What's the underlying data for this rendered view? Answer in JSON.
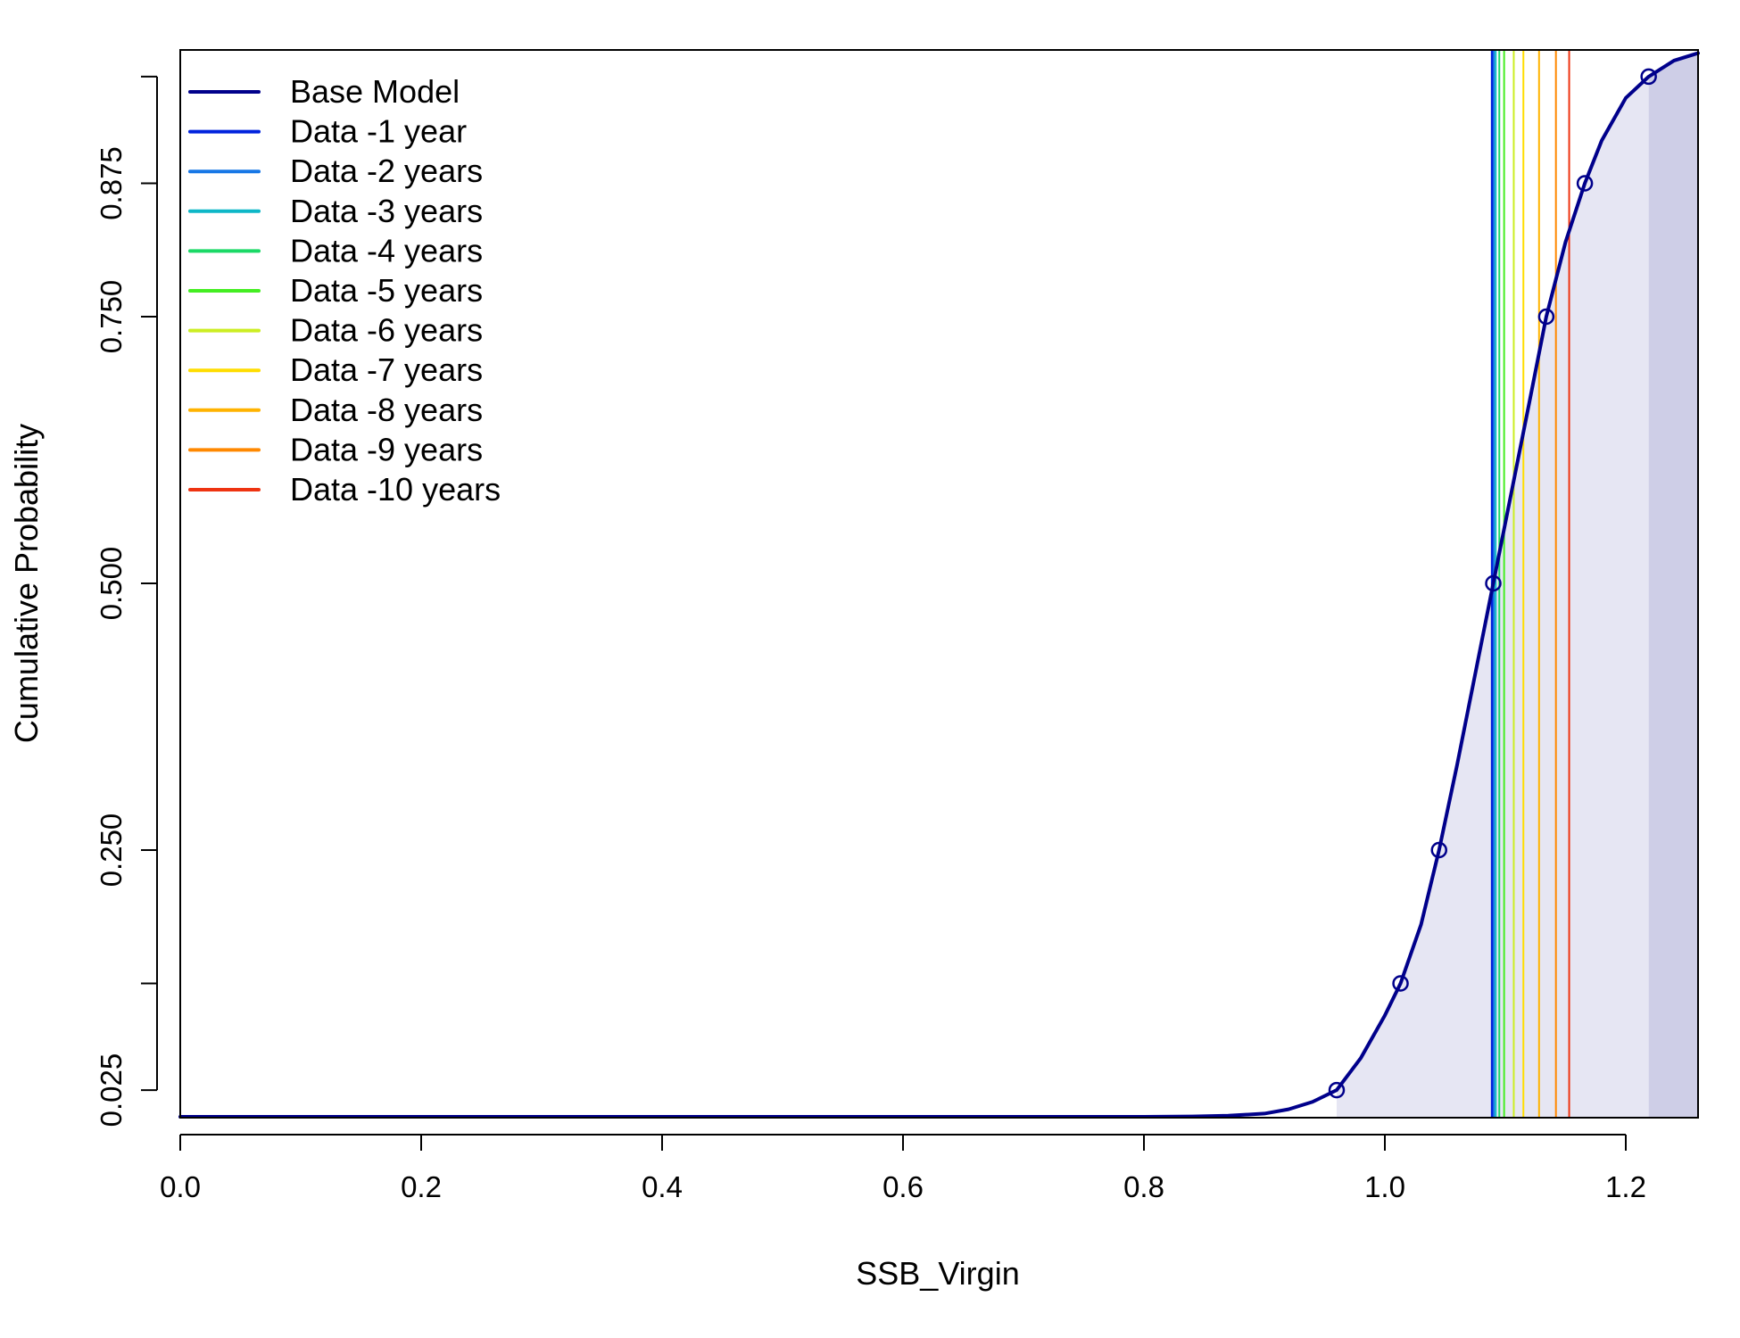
{
  "chart_data": {
    "type": "line",
    "title": "",
    "xlabel": "SSB_Virgin",
    "ylabel": "Cumulative Probability",
    "xlim": [
      0,
      1.26
    ],
    "ylim": [
      0,
      1
    ],
    "grid": false,
    "legend_position": "top-left",
    "x_ticks": [
      {
        "value": 0.0,
        "label": "0.0"
      },
      {
        "value": 0.2,
        "label": "0.2"
      },
      {
        "value": 0.4,
        "label": "0.4"
      },
      {
        "value": 0.6,
        "label": "0.6"
      },
      {
        "value": 0.8,
        "label": "0.8"
      },
      {
        "value": 1.0,
        "label": "1.0"
      },
      {
        "value": 1.2,
        "label": "1.2"
      }
    ],
    "y_ticks": [
      {
        "value": 0.025,
        "label": "0.025"
      },
      {
        "value": 0.125,
        "label": ""
      },
      {
        "value": 0.25,
        "label": "0.250"
      },
      {
        "value": 0.5,
        "label": "0.500"
      },
      {
        "value": 0.75,
        "label": "0.750"
      },
      {
        "value": 0.875,
        "label": "0.875"
      },
      {
        "value": 0.975,
        "label": ""
      }
    ],
    "base_model": {
      "name": "Base Model",
      "color": "#00008B",
      "quantiles": [
        {
          "x": 0.96,
          "y": 0.025
        },
        {
          "x": 1.013,
          "y": 0.125
        },
        {
          "x": 1.045,
          "y": 0.25
        },
        {
          "x": 1.09,
          "y": 0.5
        },
        {
          "x": 1.134,
          "y": 0.75
        },
        {
          "x": 1.166,
          "y": 0.875
        },
        {
          "x": 1.219,
          "y": 0.975
        }
      ],
      "curve": [
        {
          "x": 0.0,
          "y": 0.0
        },
        {
          "x": 0.8,
          "y": 0.0
        },
        {
          "x": 0.84,
          "y": 0.0003
        },
        {
          "x": 0.87,
          "y": 0.001
        },
        {
          "x": 0.9,
          "y": 0.003
        },
        {
          "x": 0.92,
          "y": 0.007
        },
        {
          "x": 0.94,
          "y": 0.014
        },
        {
          "x": 0.96,
          "y": 0.025
        },
        {
          "x": 0.98,
          "y": 0.055
        },
        {
          "x": 1.0,
          "y": 0.095
        },
        {
          "x": 1.013,
          "y": 0.125
        },
        {
          "x": 1.03,
          "y": 0.18
        },
        {
          "x": 1.045,
          "y": 0.25
        },
        {
          "x": 1.06,
          "y": 0.33
        },
        {
          "x": 1.075,
          "y": 0.415
        },
        {
          "x": 1.09,
          "y": 0.5
        },
        {
          "x": 1.105,
          "y": 0.585
        },
        {
          "x": 1.12,
          "y": 0.67
        },
        {
          "x": 1.134,
          "y": 0.75
        },
        {
          "x": 1.15,
          "y": 0.82
        },
        {
          "x": 1.166,
          "y": 0.875
        },
        {
          "x": 1.18,
          "y": 0.915
        },
        {
          "x": 1.2,
          "y": 0.955
        },
        {
          "x": 1.219,
          "y": 0.975
        },
        {
          "x": 1.24,
          "y": 0.99
        },
        {
          "x": 1.26,
          "y": 0.997
        }
      ],
      "shading": {
        "light_color": "#E6E6F3",
        "dark_color": "#CECEE7",
        "light_from": 0.96,
        "dark_from": 1.219
      }
    },
    "series": [
      {
        "name": "Data -1 year",
        "color": "#0022DD",
        "value": 1.0895
      },
      {
        "name": "Data -2 years",
        "color": "#1777E6",
        "value": 1.0905
      },
      {
        "name": "Data -3 years",
        "color": "#0DB7C7",
        "value": 1.092
      },
      {
        "name": "Data -4 years",
        "color": "#1AD966",
        "value": 1.095
      },
      {
        "name": "Data -5 years",
        "color": "#44EE22",
        "value": 1.099
      },
      {
        "name": "Data -6 years",
        "color": "#CCEE22",
        "value": 1.107
      },
      {
        "name": "Data -7 years",
        "color": "#FFDD00",
        "value": 1.115
      },
      {
        "name": "Data -8 years",
        "color": "#FFB300",
        "value": 1.128
      },
      {
        "name": "Data -9 years",
        "color": "#FF8800",
        "value": 1.142
      },
      {
        "name": "Data -10 years",
        "color": "#EE3311",
        "value": 1.153
      }
    ]
  }
}
